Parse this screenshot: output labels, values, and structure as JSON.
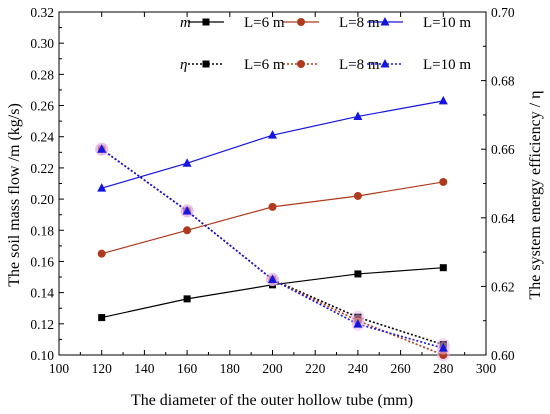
{
  "chart_data": {
    "type": "line",
    "xlabel": "The diameter of  the outer hollow tube (mm)",
    "ylabel_left": "The soil mass flow /m (kg/s)",
    "ylabel_right": "The system energy efficiency / η",
    "xlim": [
      100,
      300
    ],
    "xticks": [
      "100",
      "120",
      "140",
      "160",
      "180",
      "200",
      "220",
      "240",
      "260",
      "280",
      "300"
    ],
    "ylim_left": [
      0.1,
      0.32
    ],
    "yticks_left": [
      "0.10",
      "0.12",
      "0.14",
      "0.16",
      "0.18",
      "0.20",
      "0.22",
      "0.24",
      "0.26",
      "0.28",
      "0.30",
      "0.32"
    ],
    "ylim_right": [
      0.6,
      0.7
    ],
    "yticks_right": [
      "0.60",
      "0.62",
      "0.64",
      "0.66",
      "0.68",
      "0.70"
    ],
    "x": [
      120,
      160,
      200,
      240,
      280
    ],
    "legend": {
      "position": "top-right",
      "row1_symbol": "m",
      "row2_symbol": "η",
      "labels": [
        "L=6 m",
        "L=8 m",
        "L=10 m"
      ]
    },
    "series": [
      {
        "name": "L=6 m",
        "quantity": "m",
        "axis": "left",
        "marker": "square",
        "line": "solid",
        "color": "#000000",
        "values": [
          0.124,
          0.136,
          0.145,
          0.152,
          0.156
        ]
      },
      {
        "name": "L=8 m",
        "quantity": "m",
        "axis": "left",
        "marker": "circle",
        "line": "solid",
        "color": "#b03a1e",
        "values": [
          0.165,
          0.18,
          0.195,
          0.202,
          0.211
        ]
      },
      {
        "name": "L=10 m",
        "quantity": "m",
        "axis": "left",
        "marker": "triangle",
        "line": "solid",
        "color": "#1515e0",
        "values": [
          0.207,
          0.223,
          0.241,
          0.253,
          0.263
        ]
      },
      {
        "name": "L=6 m",
        "quantity": "η",
        "axis": "right",
        "marker": "square",
        "line": "dotted",
        "color": "#000000",
        "values": [
          0.66,
          0.642,
          0.622,
          0.611,
          0.603
        ]
      },
      {
        "name": "L=8 m",
        "quantity": "η",
        "axis": "right",
        "marker": "circle",
        "line": "dotted",
        "color": "#b03a1e",
        "values": [
          0.66,
          0.642,
          0.622,
          0.61,
          0.6
        ]
      },
      {
        "name": "L=10 m",
        "quantity": "η",
        "axis": "right",
        "marker": "triangle",
        "line": "dotted",
        "color": "#1515e0",
        "values": [
          0.66,
          0.642,
          0.622,
          0.609,
          0.602
        ]
      }
    ]
  }
}
